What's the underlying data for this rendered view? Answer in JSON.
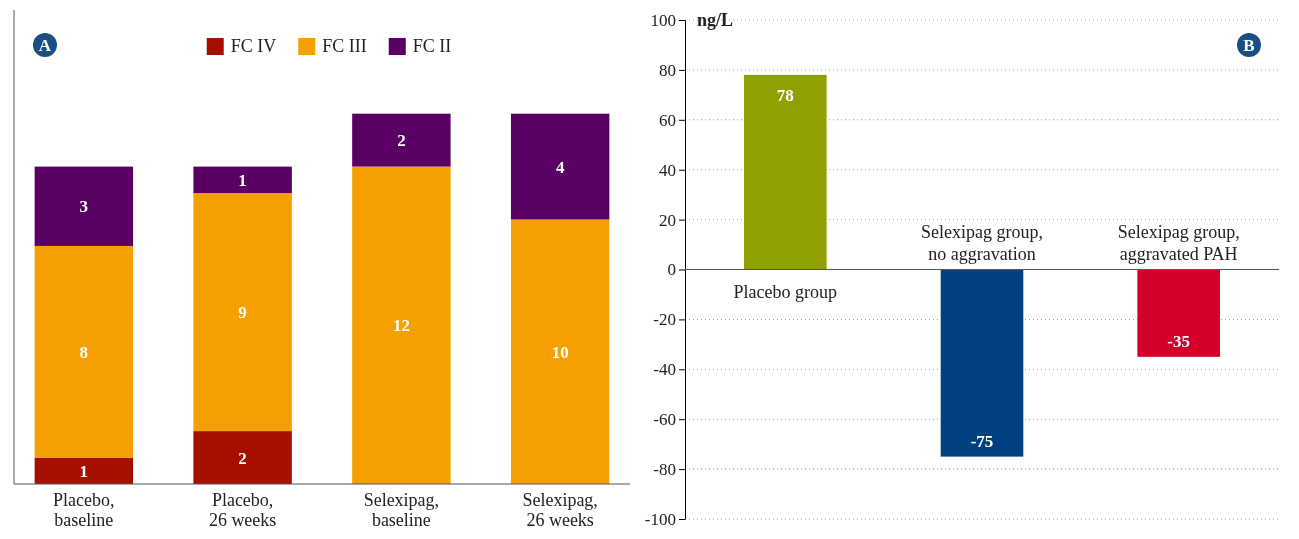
{
  "chart_data": [
    {
      "type": "bar",
      "title": "A",
      "stacked": true,
      "data_labels": true,
      "legend": "top",
      "categories": [
        "Placebo, baseline",
        "Placebo, 26 weeks",
        "Selexipag, baseline",
        "Selexipag, 26 weeks"
      ],
      "series": [
        {
          "name": "FC IV",
          "color": "#a50f00",
          "values": [
            1,
            2,
            null,
            null
          ]
        },
        {
          "name": "FC III",
          "color": "#f5a000",
          "values": [
            8,
            9,
            12,
            10
          ]
        },
        {
          "name": "FC II",
          "color": "#5a0064",
          "values": [
            3,
            1,
            2,
            4
          ]
        }
      ]
    },
    {
      "type": "bar",
      "title": "B",
      "ylabel": "ng/L",
      "data_labels": true,
      "grid": "y",
      "tick_labels": "y",
      "categories": [
        "Placebo group",
        "Selexipag group, no aggravation",
        "Selexipag group, aggravated PAH"
      ],
      "values": [
        78,
        -75,
        -35
      ],
      "colors": [
        "#8fa000",
        "#004281",
        "#d4002a"
      ],
      "ylim": [
        -100,
        100
      ],
      "yticks": [
        -100,
        -80,
        -60,
        -40,
        -20,
        0,
        20,
        40,
        60,
        80,
        100
      ]
    }
  ]
}
